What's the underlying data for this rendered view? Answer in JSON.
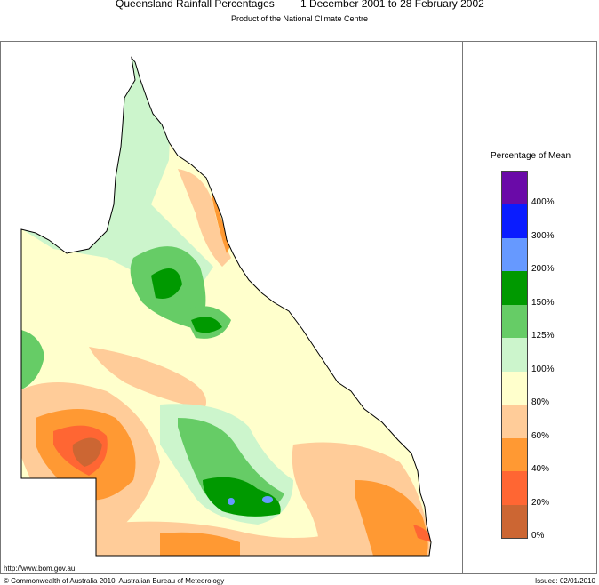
{
  "header": {
    "title_left": "Queensland Rainfall Percentages",
    "title_right": "1 December 2001 to 28 February 2002",
    "subtitle": "Product of the National Climate Centre"
  },
  "legend": {
    "title": "Percentage of Mean",
    "classes": [
      {
        "label": "400%",
        "color": "#6a0aa8"
      },
      {
        "label": "300%",
        "color": "#0a1cff"
      },
      {
        "label": "200%",
        "color": "#6699ff"
      },
      {
        "label": "150%",
        "color": "#009900"
      },
      {
        "label": "125%",
        "color": "#66cc66"
      },
      {
        "label": "100%",
        "color": "#ccf5cc"
      },
      {
        "label": "80%",
        "color": "#ffffcc"
      },
      {
        "label": "60%",
        "color": "#ffcc99"
      },
      {
        "label": "40%",
        "color": "#ff9933"
      },
      {
        "label": "20%",
        "color": "#ff6633"
      },
      {
        "label": "0%",
        "color": "#cc6633"
      }
    ],
    "tick_labels": [
      "400%",
      "300%",
      "200%",
      "150%",
      "125%",
      "100%",
      "80%",
      "60%",
      "40%",
      "20%",
      "0%"
    ]
  },
  "footer": {
    "url": "http://www.bom.gov.au",
    "copyright": "© Commonwealth of Australia 2010, Australian Bureau of Meteorology",
    "issued": "Issued: 02/01/2010"
  }
}
